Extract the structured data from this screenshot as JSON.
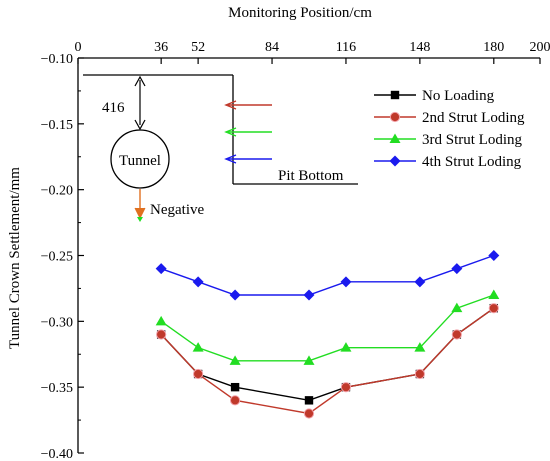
{
  "chart_data": {
    "type": "line",
    "title": "",
    "xlabel": "Monitoring Position/cm",
    "ylabel": "Tunnel Crown Settlement/mm",
    "x_axis_position": "top",
    "xlim": [
      0,
      200
    ],
    "ylim": [
      -0.4,
      -0.1
    ],
    "x_ticks": [
      0,
      36,
      52,
      84,
      116,
      148,
      180,
      200
    ],
    "x_tick_labels": [
      "0",
      "36",
      "52",
      "84",
      "116",
      "148",
      "180",
      "200"
    ],
    "y_ticks": [
      -0.1,
      -0.15,
      -0.2,
      -0.25,
      -0.3,
      -0.35,
      -0.4
    ],
    "y_tick_labels": [
      "−0.10",
      "−0.15",
      "−0.20",
      "−0.25",
      "−0.30",
      "−0.35",
      "−0.40"
    ],
    "grid": false,
    "legend_position": "top-right",
    "x": [
      36,
      52,
      68,
      100,
      116,
      148,
      164,
      180
    ],
    "series": [
      {
        "name": "No Loading",
        "values": [
          -0.31,
          -0.34,
          -0.35,
          -0.36,
          -0.35,
          -0.34,
          -0.31,
          -0.29
        ],
        "color": "#000000",
        "marker": "square"
      },
      {
        "name": "2nd Strut Loding",
        "values": [
          -0.31,
          -0.34,
          -0.36,
          -0.37,
          -0.35,
          -0.34,
          -0.31,
          -0.29
        ],
        "color": "#c0392b",
        "marker": "circle"
      },
      {
        "name": "3rd Strut Loding",
        "values": [
          -0.3,
          -0.32,
          -0.33,
          -0.33,
          -0.32,
          -0.32,
          -0.29,
          -0.28
        ],
        "color": "#22dd22",
        "marker": "triangle"
      },
      {
        "name": "4th Strut Loding",
        "values": [
          -0.26,
          -0.27,
          -0.28,
          -0.28,
          -0.27,
          -0.27,
          -0.26,
          -0.25
        ],
        "color": "#1a1aee",
        "marker": "diamond"
      }
    ],
    "annotations": {
      "depth_label": "416",
      "tunnel_label": "Tunnel",
      "pit_bottom_label": "Pit Bottom",
      "direction_label": "Negative",
      "strut_arrow_colors": [
        "#c0392b",
        "#22dd22",
        "#1a1aee"
      ]
    }
  }
}
